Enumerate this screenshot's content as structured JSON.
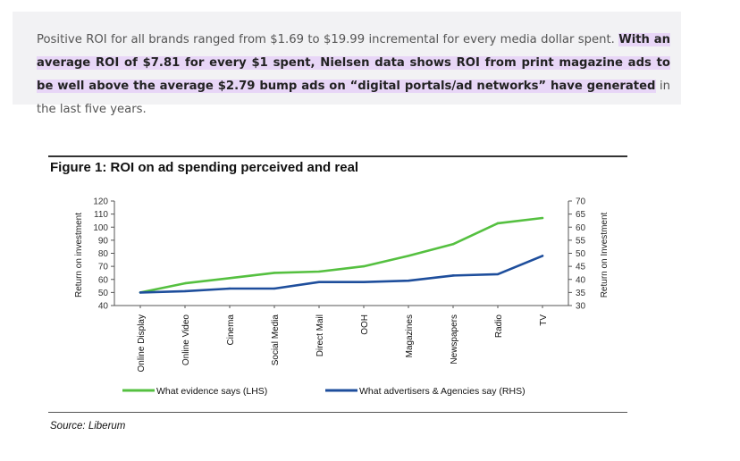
{
  "quote": {
    "plain": "Positive ROI for all brands ranged from $1.69 to $19.99 incremental for every media dollar spent. ",
    "highlight": "With an average ROI of $7.81 for every $1 spent, Nielsen data shows ROI from print magazine ads to be well above the average $2.79 bump ads on “digital portals/ad networks” have generated",
    "tail": " in the last five years."
  },
  "source": "Source: Liberum",
  "chart_data": {
    "type": "line",
    "title": "Figure 1: ROI on ad spending perceived and real",
    "categories": [
      "Online Display",
      "Online Video",
      "Cinema",
      "Social Media",
      "Direct Mail",
      "OOH",
      "Magazines",
      "Newspapers",
      "Radio",
      "TV"
    ],
    "ylabel": "Return on investment",
    "ylabel_right": "Return on Investment",
    "ylim": [
      40,
      120
    ],
    "yticks": [
      40,
      50,
      60,
      70,
      80,
      90,
      100,
      110,
      120
    ],
    "ylim_right": [
      30,
      70
    ],
    "yticks_right": [
      30,
      35,
      40,
      45,
      50,
      55,
      60,
      65,
      70
    ],
    "grid": false,
    "legend_position": "bottom",
    "series": [
      {
        "name": "What evidence says (LHS)",
        "axis": "left",
        "color": "#55c040",
        "values": [
          50,
          57,
          61,
          65,
          66,
          70,
          78,
          87,
          103,
          107
        ]
      },
      {
        "name": "What advertisers & Agencies say (RHS)",
        "axis": "right",
        "color": "#1e4e9c",
        "values": [
          35,
          35.5,
          36.5,
          36.5,
          39,
          39,
          39.5,
          41.5,
          42,
          49
        ]
      }
    ]
  }
}
